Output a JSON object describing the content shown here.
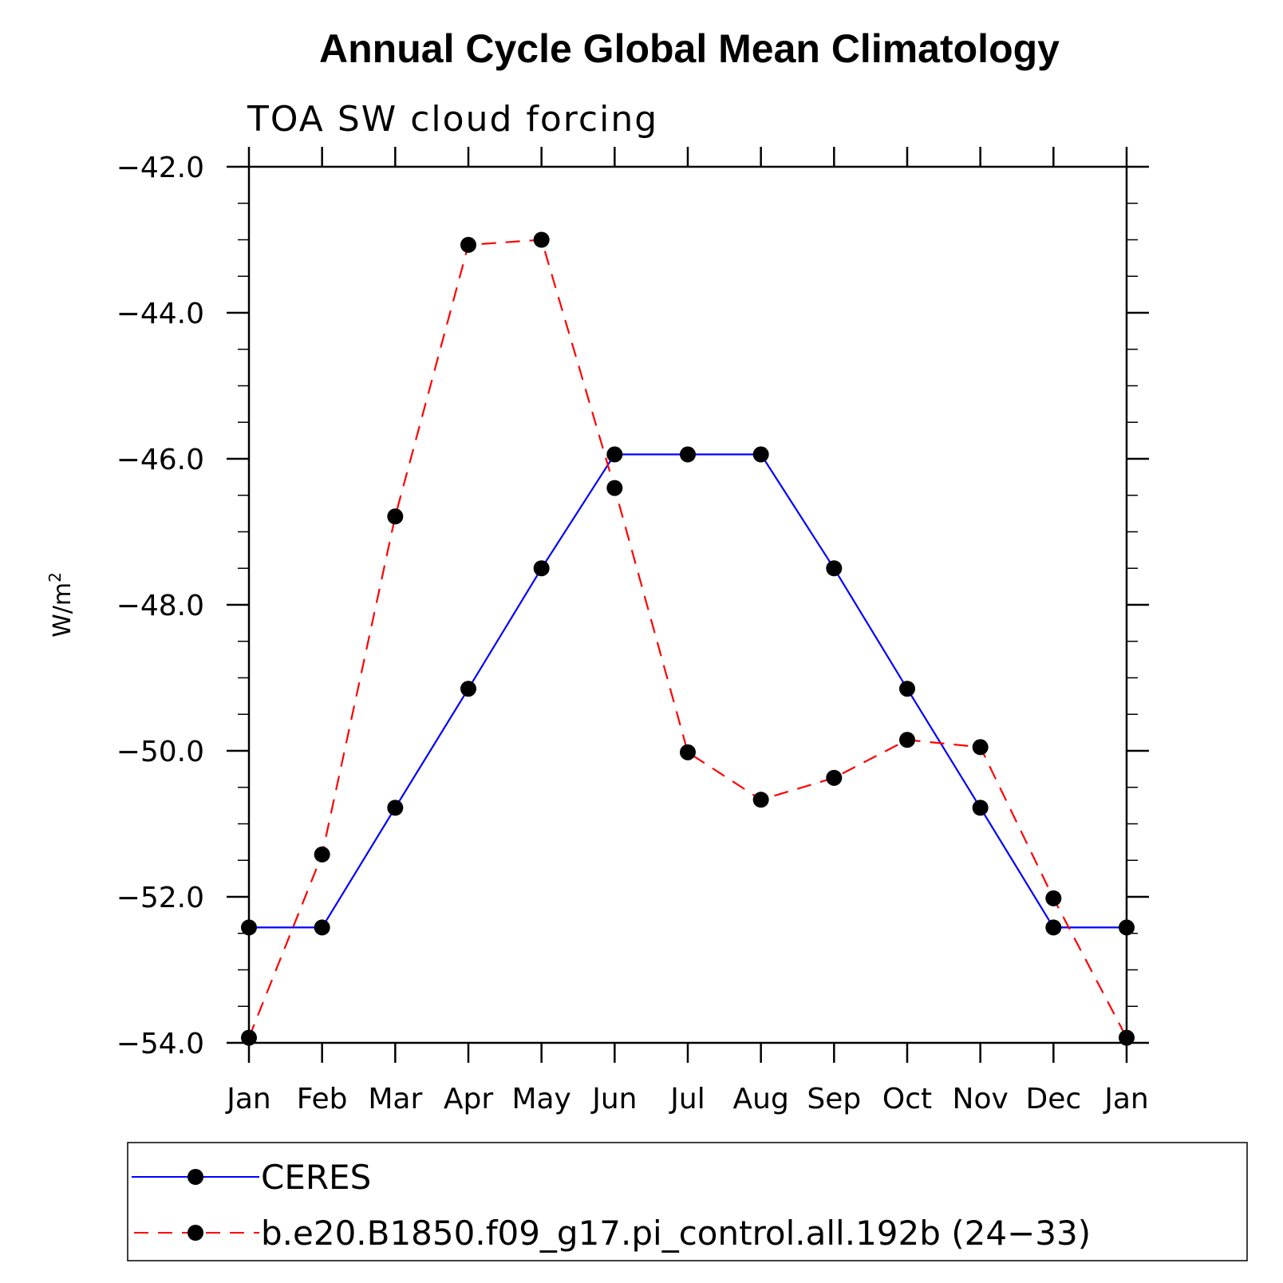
{
  "chart_data": {
    "type": "line",
    "title": "Annual Cycle Global Mean Climatology",
    "subtitle": "TOA SW cloud forcing",
    "ylabel": "W/m",
    "ylabel_superscript": "2",
    "xlabel": "",
    "categories": [
      "Jan",
      "Feb",
      "Mar",
      "Apr",
      "May",
      "Jun",
      "Jul",
      "Aug",
      "Sep",
      "Oct",
      "Nov",
      "Dec",
      "Jan"
    ],
    "ylim": [
      -54.0,
      -42.0
    ],
    "yticks": [
      -54.0,
      -52.0,
      -50.0,
      -48.0,
      -46.0,
      -44.0,
      -42.0
    ],
    "ytick_labels": [
      "−54.0",
      "−52.0",
      "−50.0",
      "−48.0",
      "−46.0",
      "−44.0",
      "−42.0"
    ],
    "series": [
      {
        "name": "CERES",
        "color": "#0000ff",
        "dash": "solid",
        "values": [
          -52.42,
          -52.42,
          -50.78,
          -49.15,
          -47.5,
          -45.94,
          -45.94,
          -45.94,
          -47.5,
          -49.15,
          -50.78,
          -52.42,
          -52.42
        ]
      },
      {
        "name": "b.e20.B1850.f09_g17.pi_control.all.192b (24−33)",
        "color": "#ff0000",
        "dash": "dashed",
        "values": [
          -53.93,
          -51.42,
          -46.79,
          -43.07,
          -43.0,
          -46.4,
          -50.02,
          -50.67,
          -50.37,
          -49.85,
          -49.95,
          -52.02,
          -53.93
        ]
      }
    ],
    "legend_position": "bottom"
  }
}
